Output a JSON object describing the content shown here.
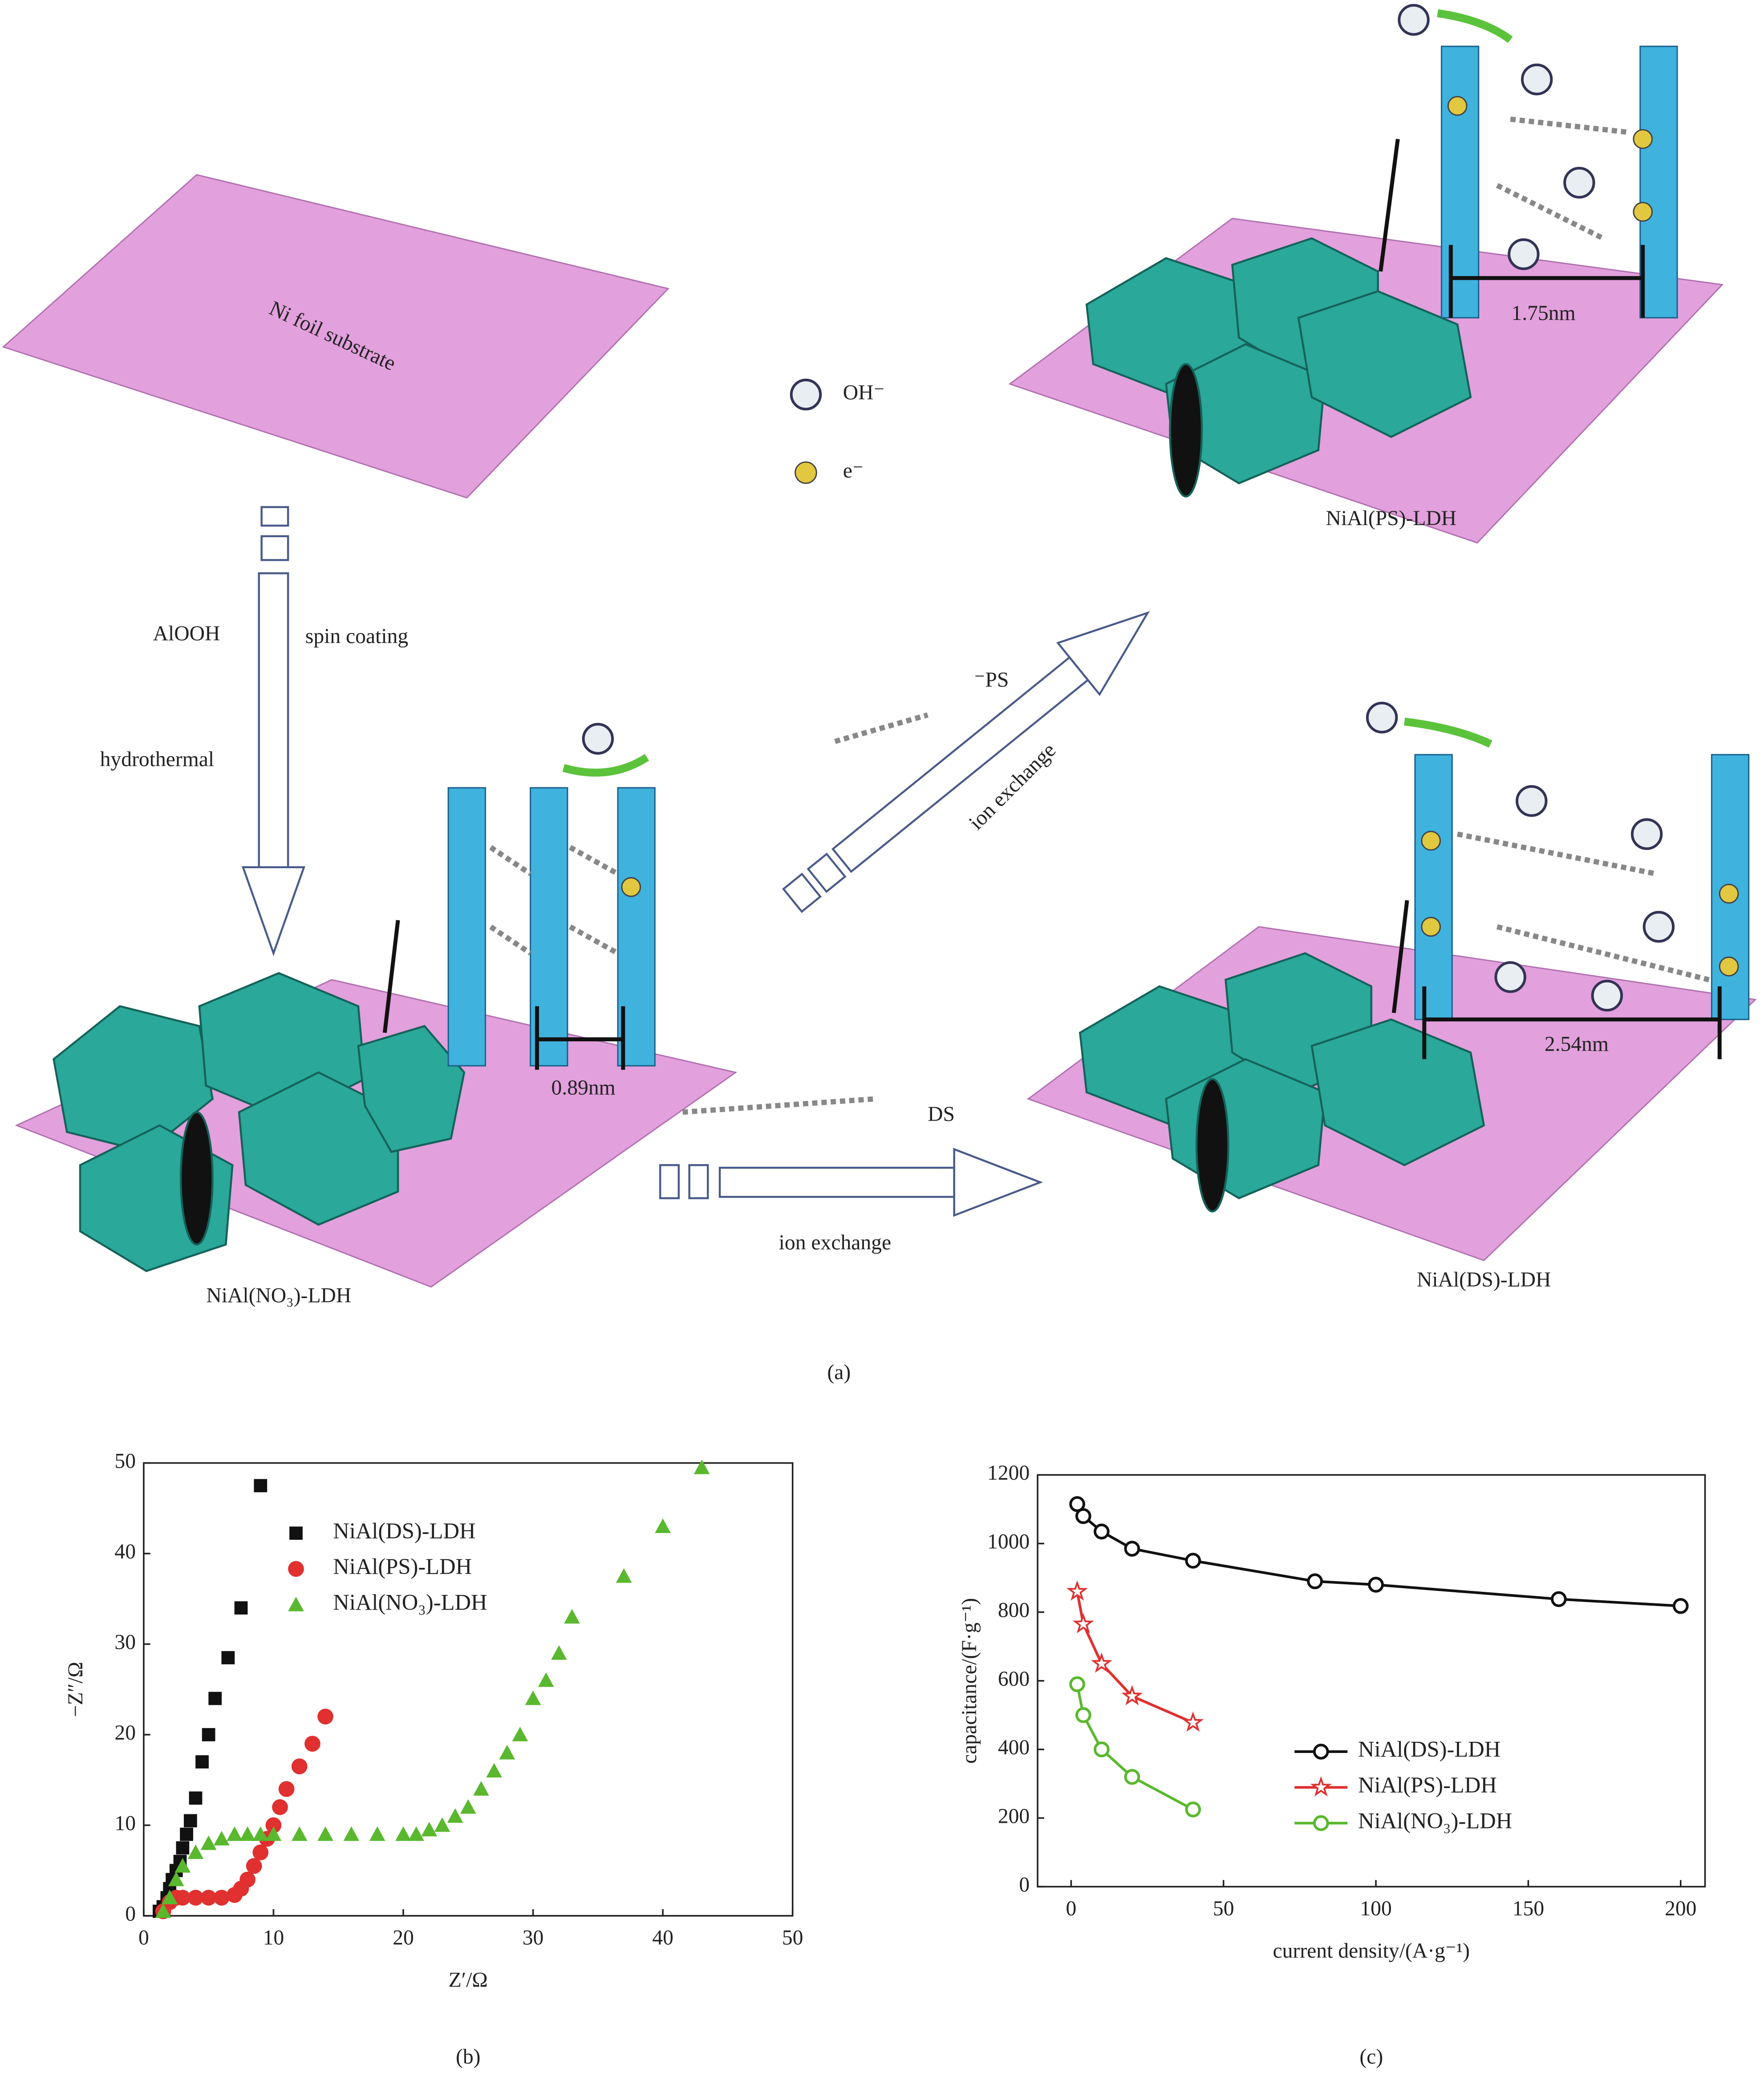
{
  "diagram": {
    "substrate_label": "Ni foil substrate",
    "step_left": "AlOOH",
    "step_right": "spin coating",
    "step_lower": "hydrothermal",
    "start_product": "NiAl(NO₃)-LDH",
    "start_spacing": "0.89nm",
    "legend_oh": "OH⁻",
    "legend_e": "e⁻",
    "ps_product": "NiAl(PS)-LDH",
    "ps_spacing": "1.75nm",
    "ps_anion": "⁻PS",
    "ps_step": "ion exchange",
    "ds_anion": "DS",
    "ds_step": "ion exchange",
    "ds_product": "NiAl(DS)-LDH",
    "ds_spacing": "2.54nm",
    "caption": "(a)"
  },
  "chart_data": [
    {
      "type": "scatter",
      "caption": "(b)",
      "xlabel": "Z′/Ω",
      "ylabel": "−Z″/Ω",
      "xlim": [
        0,
        50
      ],
      "ylim": [
        0,
        50
      ],
      "xticks": [
        0,
        10,
        20,
        30,
        40,
        50
      ],
      "yticks": [
        0,
        10,
        20,
        30,
        40,
        50
      ],
      "legend": "upper left",
      "series": [
        {
          "name": "NiAl(DS)-LDH",
          "color": "#111111",
          "marker": "square",
          "x": [
            1.2,
            1.5,
            1.8,
            2,
            2.2,
            2.5,
            2.8,
            3,
            3.3,
            3.6,
            4,
            4.5,
            5,
            5.5,
            6.5,
            7.5,
            9
          ],
          "values": [
            0.5,
            1,
            2,
            3,
            4,
            5,
            6,
            7.5,
            9,
            10.5,
            13,
            17,
            20,
            24,
            28.5,
            34,
            47.5
          ]
        },
        {
          "name": "NiAl(PS)-LDH",
          "color": "#e03030",
          "marker": "circle",
          "x": [
            1.5,
            2,
            2.5,
            3,
            4,
            5,
            6,
            7,
            7.5,
            8,
            8.5,
            9,
            9.5,
            10,
            10.5,
            11,
            12,
            13,
            14
          ],
          "values": [
            0.5,
            1.5,
            2,
            2,
            2,
            2,
            2,
            2.3,
            3,
            4,
            5.5,
            7,
            8.5,
            10,
            12,
            14,
            16.5,
            19,
            22
          ]
        },
        {
          "name": "NiAl(NO₃)-LDH",
          "color": "#5ab82e",
          "marker": "triangle",
          "x": [
            1.5,
            2,
            2.5,
            3,
            4,
            5,
            6,
            7,
            8,
            9,
            10,
            12,
            14,
            16,
            18,
            20,
            21,
            22,
            23,
            24,
            25,
            26,
            27,
            28,
            29,
            30,
            31,
            32,
            33,
            37,
            40,
            43
          ],
          "values": [
            0.5,
            2,
            4,
            5.5,
            7,
            8,
            8.5,
            9,
            9,
            9,
            9,
            9,
            9,
            9,
            9,
            9,
            9,
            9.5,
            10,
            11,
            12,
            14,
            16,
            18,
            20,
            24,
            26,
            29,
            33,
            37.5,
            43,
            49.5
          ]
        }
      ]
    },
    {
      "type": "line",
      "caption": "(c)",
      "xlabel": "current density/(A·g⁻¹)",
      "ylabel": "capacitance/(F·g⁻¹)",
      "xlim": [
        -11,
        208
      ],
      "ylim": [
        0,
        1200
      ],
      "xticks": [
        0,
        50,
        100,
        150,
        200
      ],
      "yticks": [
        0,
        200,
        400,
        600,
        800,
        1000,
        1200
      ],
      "legend": "center right",
      "series": [
        {
          "name": "NiAl(DS)-LDH",
          "color": "#111111",
          "marker": "circle",
          "x": [
            2,
            4,
            10,
            20,
            40,
            80,
            100,
            160,
            200
          ],
          "values": [
            1115,
            1080,
            1035,
            985,
            950,
            890,
            880,
            838,
            818
          ]
        },
        {
          "name": "NiAl(PS)-LDH",
          "color": "#e03030",
          "marker": "star",
          "x": [
            2,
            4,
            10,
            20,
            40
          ],
          "values": [
            860,
            765,
            650,
            555,
            478
          ]
        },
        {
          "name": "NiAl(NO₃)-LDH",
          "color": "#5ab82e",
          "marker": "circle",
          "x": [
            2,
            4,
            10,
            20,
            40
          ],
          "values": [
            590,
            500,
            400,
            320,
            225
          ]
        }
      ]
    }
  ]
}
